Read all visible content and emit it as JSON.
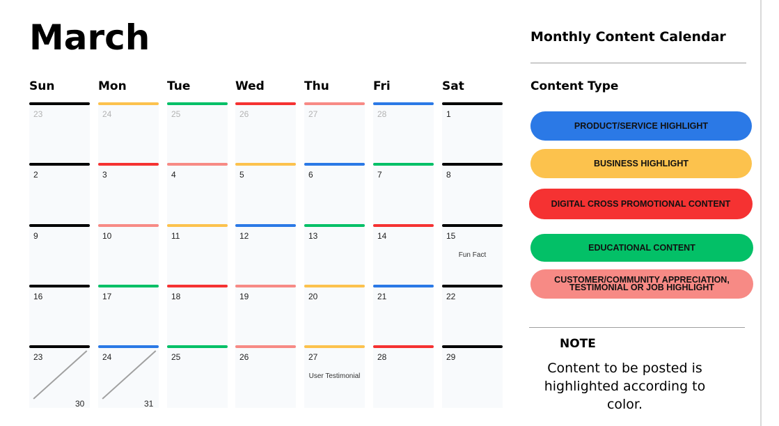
{
  "month": "March",
  "weekdays": [
    "Sun",
    "Mon",
    "Tue",
    "Wed",
    "Thu",
    "Fri",
    "Sat"
  ],
  "colors": {
    "black": "#000000",
    "blue": "#2b79e6",
    "yellow": "#fcc24d",
    "red": "#f53232",
    "green": "#03c067",
    "pink": "#f78a85"
  },
  "weekday_colors": [
    "black",
    "yellow",
    "green",
    "red",
    "pink",
    "blue",
    "black"
  ],
  "weeks": [
    [
      {
        "day": "23",
        "muted": true,
        "color": "black"
      },
      {
        "day": "24",
        "muted": true,
        "color": "yellow"
      },
      {
        "day": "25",
        "muted": true,
        "color": "green"
      },
      {
        "day": "26",
        "muted": true,
        "color": "red"
      },
      {
        "day": "27",
        "muted": true,
        "color": "pink"
      },
      {
        "day": "28",
        "muted": true,
        "color": "blue"
      },
      {
        "day": "1",
        "muted": false,
        "color": "black"
      }
    ],
    [
      {
        "day": "2",
        "color": "black"
      },
      {
        "day": "3",
        "color": "red"
      },
      {
        "day": "4",
        "color": "pink"
      },
      {
        "day": "5",
        "color": "yellow"
      },
      {
        "day": "6",
        "color": "blue"
      },
      {
        "day": "7",
        "color": "green"
      },
      {
        "day": "8",
        "color": "black"
      }
    ],
    [
      {
        "day": "9",
        "color": "black"
      },
      {
        "day": "10",
        "color": "pink"
      },
      {
        "day": "11",
        "color": "yellow"
      },
      {
        "day": "12",
        "color": "blue"
      },
      {
        "day": "13",
        "color": "green"
      },
      {
        "day": "14",
        "color": "red"
      },
      {
        "day": "15",
        "color": "black",
        "note": "Fun Fact"
      }
    ],
    [
      {
        "day": "16",
        "color": "black"
      },
      {
        "day": "17",
        "color": "green"
      },
      {
        "day": "18",
        "color": "red"
      },
      {
        "day": "19",
        "color": "pink"
      },
      {
        "day": "20",
        "color": "yellow"
      },
      {
        "day": "21",
        "color": "blue"
      },
      {
        "day": "22",
        "color": "black"
      }
    ],
    [
      {
        "day": "23",
        "color": "black",
        "split_day": "30"
      },
      {
        "day": "24",
        "color": "blue",
        "split_day": "31"
      },
      {
        "day": "25",
        "color": "green"
      },
      {
        "day": "26",
        "color": "pink"
      },
      {
        "day": "27",
        "color": "yellow",
        "note": "User Testimonial"
      },
      {
        "day": "28",
        "color": "red"
      },
      {
        "day": "29",
        "color": "black"
      }
    ]
  ],
  "sidebar": {
    "title": "Monthly Content Calendar",
    "content_type_heading": "Content Type",
    "legend": [
      {
        "label": "PRODUCT/SERVICE HIGHLIGHT",
        "color": "blue"
      },
      {
        "label": "BUSINESS HIGHLIGHT",
        "color": "yellow"
      },
      {
        "label": "DIGITAL CROSS PROMOTIONAL CONTENT",
        "color": "red"
      },
      {
        "label": "EDUCATIONAL CONTENT",
        "color": "green"
      },
      {
        "label": "CUSTOMER/COMMUNITY APPRECIATION, TESTIMONIAL OR JOB HIGHLIGHT",
        "color": "pink"
      }
    ],
    "note_heading": "NOTE",
    "note_text": "Content to be posted is highlighted according to color."
  }
}
